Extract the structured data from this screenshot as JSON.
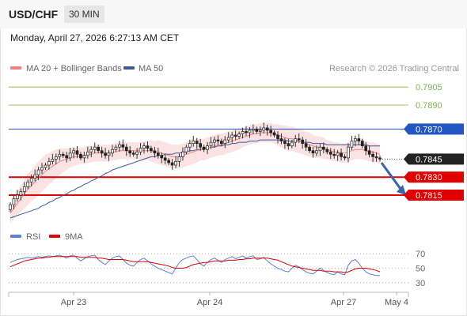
{
  "header": {
    "symbol": "USD/CHF",
    "timeframe": "30 MIN"
  },
  "datetime": "Monday, April 27, 2026 6:27:13 AM CET",
  "legend": {
    "ma20": "MA 20 + Bollinger Bands",
    "ma50": "MA 50",
    "ma20_color": "#f08080",
    "ma50_color": "#3c5a9a"
  },
  "credit": "Research © 2026 Trading Central",
  "rsi_legend": {
    "rsi": "RSI",
    "ma9": "9MA",
    "rsi_color": "#5b7fd6",
    "ma9_color": "#e00000"
  },
  "chart_data": {
    "type": "candlestick",
    "price_ylim": [
      0.779,
      0.7915
    ],
    "x_ticks": [
      "Apr 23",
      "Apr 24",
      "Apr 27",
      "May 4"
    ],
    "levels": [
      {
        "value": "0.7905",
        "style": "resistance",
        "color": "#7ab648"
      },
      {
        "value": "0.7890",
        "style": "resistance",
        "color": "#7ab648"
      },
      {
        "value": "0.7870",
        "style": "pivot",
        "color": "#2455c4"
      },
      {
        "value": "0.7845",
        "style": "last",
        "color": "#222222"
      },
      {
        "value": "0.7830",
        "style": "support",
        "color": "#e00000"
      },
      {
        "value": "0.7815",
        "style": "support",
        "color": "#e00000"
      }
    ],
    "last_price": 0.7845,
    "forecast_arrow": {
      "from": 0.7842,
      "to": 0.7815,
      "direction": "down"
    },
    "closes": [
      0.7807,
      0.7812,
      0.7815,
      0.7818,
      0.7822,
      0.7826,
      0.7829,
      0.7832,
      0.7836,
      0.7838,
      0.784,
      0.7843,
      0.7845,
      0.7847,
      0.7849,
      0.7848,
      0.7846,
      0.785,
      0.7852,
      0.7849,
      0.7846,
      0.7848,
      0.7851,
      0.7853,
      0.7855,
      0.7852,
      0.785,
      0.7848,
      0.785,
      0.7853,
      0.7855,
      0.7857,
      0.7855,
      0.7852,
      0.785,
      0.7849,
      0.7851,
      0.7854,
      0.7856,
      0.7854,
      0.7852,
      0.785,
      0.7848,
      0.7846,
      0.7844,
      0.7842,
      0.784,
      0.7843,
      0.7847,
      0.7851,
      0.7855,
      0.7858,
      0.786,
      0.7858,
      0.7855,
      0.7853,
      0.7856,
      0.7859,
      0.7861,
      0.786,
      0.7858,
      0.7861,
      0.7863,
      0.7865,
      0.7864,
      0.7866,
      0.7868,
      0.7867,
      0.7869,
      0.787,
      0.7868,
      0.7869,
      0.7871,
      0.7869,
      0.7867,
      0.7865,
      0.7862,
      0.786,
      0.7858,
      0.7856,
      0.7859,
      0.7862,
      0.7861,
      0.7858,
      0.7855,
      0.7852,
      0.785,
      0.7852,
      0.7855,
      0.7853,
      0.7851,
      0.7849,
      0.7848,
      0.785,
      0.7847,
      0.7846,
      0.7855,
      0.786,
      0.7862,
      0.786,
      0.7856,
      0.7852,
      0.7849,
      0.7847,
      0.7846,
      0.7845
    ],
    "ma20": [
      0.78,
      0.7804,
      0.7808,
      0.7812,
      0.7816,
      0.782,
      0.7823,
      0.7826,
      0.7829,
      0.7832,
      0.7835,
      0.7837,
      0.7839,
      0.7841,
      0.7843,
      0.7844,
      0.7845,
      0.7846,
      0.7847,
      0.7847,
      0.7848,
      0.7848,
      0.7849,
      0.7849,
      0.785,
      0.785,
      0.785,
      0.785,
      0.785,
      0.7851,
      0.7851,
      0.7852,
      0.7852,
      0.7852,
      0.7852,
      0.7852,
      0.7852,
      0.7852,
      0.7852,
      0.7852,
      0.7852,
      0.7851,
      0.7851,
      0.785,
      0.7849,
      0.7848,
      0.7847,
      0.7847,
      0.7847,
      0.7848,
      0.7849,
      0.785,
      0.7851,
      0.7852,
      0.7853,
      0.7853,
      0.7854,
      0.7855,
      0.7856,
      0.7857,
      0.7857,
      0.7858,
      0.7859,
      0.786,
      0.7861,
      0.7862,
      0.7863,
      0.7864,
      0.7865,
      0.7866,
      0.7866,
      0.7867,
      0.7867,
      0.7867,
      0.7867,
      0.7866,
      0.7865,
      0.7864,
      0.7863,
      0.7862,
      0.7862,
      0.7861,
      0.786,
      0.7859,
      0.7858,
      0.7857,
      0.7856,
      0.7855,
      0.7855,
      0.7854,
      0.7853,
      0.7852,
      0.7851,
      0.7851,
      0.785,
      0.785,
      0.7851,
      0.7852,
      0.7853,
      0.7853,
      0.7853,
      0.7852,
      0.7851,
      0.7851,
      0.785,
      0.7849
    ],
    "ma50": [
      0.7796,
      0.7797,
      0.7798,
      0.7799,
      0.78,
      0.7801,
      0.7802,
      0.7803,
      0.7804,
      0.7806,
      0.7807,
      0.7809,
      0.781,
      0.7812,
      0.7813,
      0.7815,
      0.7816,
      0.7818,
      0.7819,
      0.7821,
      0.7822,
      0.7824,
      0.7825,
      0.7827,
      0.7828,
      0.783,
      0.7831,
      0.7833,
      0.7834,
      0.7836,
      0.7837,
      0.7838,
      0.7839,
      0.784,
      0.7841,
      0.7842,
      0.7843,
      0.7844,
      0.7845,
      0.7846,
      0.7847,
      0.7847,
      0.7848,
      0.7848,
      0.7849,
      0.7849,
      0.7849,
      0.785,
      0.785,
      0.7851,
      0.7851,
      0.7852,
      0.7852,
      0.7853,
      0.7853,
      0.7854,
      0.7854,
      0.7855,
      0.7855,
      0.7856,
      0.7856,
      0.7857,
      0.7857,
      0.7858,
      0.7858,
      0.7859,
      0.7859,
      0.7859,
      0.786,
      0.786,
      0.786,
      0.7861,
      0.7861,
      0.7861,
      0.7861,
      0.7861,
      0.7861,
      0.7861,
      0.7861,
      0.786,
      0.786,
      0.786,
      0.786,
      0.7859,
      0.7859,
      0.7859,
      0.7858,
      0.7858,
      0.7858,
      0.7858,
      0.7857,
      0.7857,
      0.7857,
      0.7857,
      0.7857,
      0.7857,
      0.7857,
      0.7857,
      0.7857,
      0.7857,
      0.7857,
      0.7857,
      0.7856,
      0.7856,
      0.7856,
      0.7856
    ],
    "band_width": [
      0.0008,
      0.0009,
      0.001,
      0.0011,
      0.0012,
      0.0013,
      0.0013,
      0.0014,
      0.0014,
      0.0014,
      0.0014,
      0.0013,
      0.0013,
      0.0012,
      0.0011,
      0.001,
      0.0009,
      0.0008,
      0.0008,
      0.0007,
      0.0007,
      0.0007,
      0.0007,
      0.0007,
      0.0007,
      0.0007,
      0.0007,
      0.0007,
      0.0007,
      0.0007,
      0.0007,
      0.0007,
      0.0007,
      0.0007,
      0.0007,
      0.0007,
      0.0007,
      0.0007,
      0.0008,
      0.0008,
      0.0009,
      0.0009,
      0.001,
      0.001,
      0.001,
      0.001,
      0.001,
      0.001,
      0.001,
      0.001,
      0.001,
      0.001,
      0.001,
      0.001,
      0.0009,
      0.0009,
      0.0009,
      0.0009,
      0.0009,
      0.0009,
      0.0009,
      0.0009,
      0.0009,
      0.0009,
      0.0009,
      0.0009,
      0.0008,
      0.0008,
      0.0008,
      0.0008,
      0.0008,
      0.0008,
      0.0008,
      0.0008,
      0.0008,
      0.0008,
      0.0009,
      0.0009,
      0.001,
      0.001,
      0.001,
      0.001,
      0.001,
      0.001,
      0.001,
      0.001,
      0.0009,
      0.0009,
      0.0009,
      0.0009,
      0.0008,
      0.0008,
      0.0008,
      0.0008,
      0.0008,
      0.0008,
      0.0008,
      0.0008,
      0.0008,
      0.0008,
      0.0008,
      0.0008,
      0.0008,
      0.0008,
      0.0008,
      0.0008
    ],
    "rsi_ticks": [
      "70",
      "50",
      "30"
    ],
    "rsi_ylim": [
      20,
      80
    ],
    "rsi": [
      58,
      60,
      62,
      63,
      64,
      65,
      64,
      65,
      66,
      65,
      66,
      67,
      66,
      67,
      68,
      66,
      64,
      67,
      68,
      64,
      60,
      63,
      66,
      67,
      68,
      62,
      58,
      55,
      60,
      64,
      66,
      67,
      62,
      57,
      54,
      53,
      58,
      62,
      64,
      60,
      56,
      53,
      50,
      48,
      46,
      44,
      42,
      50,
      58,
      62,
      64,
      66,
      67,
      62,
      56,
      53,
      58,
      62,
      64,
      61,
      58,
      62,
      64,
      66,
      63,
      65,
      67,
      64,
      66,
      67,
      62,
      63,
      65,
      60,
      56,
      53,
      50,
      48,
      46,
      45,
      50,
      54,
      52,
      48,
      45,
      43,
      42,
      46,
      50,
      47,
      44,
      42,
      41,
      45,
      42,
      41,
      54,
      60,
      62,
      57,
      50,
      45,
      42,
      41,
      40,
      40
    ],
    "rsi_ma": [
      52,
      54,
      56,
      58,
      60,
      61,
      62,
      63,
      64,
      64,
      65,
      65,
      66,
      66,
      66,
      66,
      66,
      66,
      66,
      66,
      65,
      65,
      65,
      65,
      65,
      64,
      64,
      63,
      62,
      62,
      62,
      62,
      62,
      61,
      60,
      59,
      59,
      59,
      59,
      59,
      58,
      57,
      56,
      55,
      54,
      53,
      51,
      50,
      50,
      50,
      51,
      53,
      55,
      56,
      57,
      58,
      58,
      59,
      60,
      60,
      60,
      60,
      61,
      61,
      61,
      62,
      62,
      63,
      63,
      64,
      64,
      64,
      64,
      64,
      63,
      62,
      61,
      59,
      57,
      55,
      53,
      52,
      51,
      50,
      49,
      48,
      47,
      47,
      47,
      46,
      46,
      46,
      45,
      45,
      45,
      44,
      45,
      47,
      49,
      50,
      50,
      50,
      49,
      48,
      47,
      45
    ]
  }
}
